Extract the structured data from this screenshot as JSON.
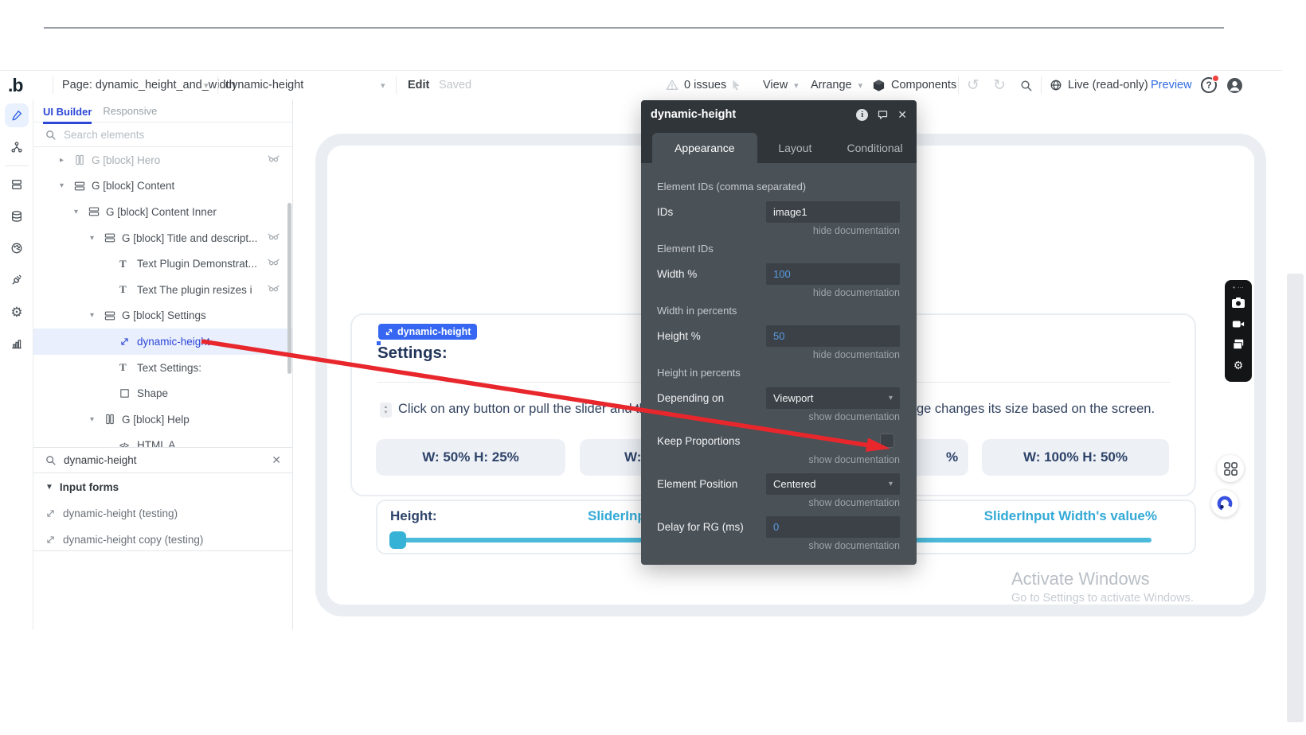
{
  "colors": {
    "accent_blue": "#3767f2",
    "tree_selected_blue": "#2c46d6",
    "teal": "#33a9d6",
    "arrow_red": "#e8272d",
    "inspector_bg": "#4a5157",
    "inspector_dark": "#30353a",
    "canvas_navy": "#2e4369",
    "value_blue": "#5a9ce2"
  },
  "toolbar": {
    "logo": ".b",
    "page_selector": {
      "label": "Page: dynamic_height_and_width"
    },
    "element_selector": {
      "label": "dynamic-height"
    },
    "edit_label": "Edit",
    "saved_label": "Saved",
    "issues_label": "0 issues",
    "view_label": "View",
    "arrange_label": "Arrange",
    "components_label": "Components",
    "live_label": "Live (read-only)",
    "preview_label": "Preview"
  },
  "left_rail": {
    "items": [
      {
        "icon": "pencil-icon",
        "active": true
      },
      {
        "icon": "workflow-icon",
        "active": false
      },
      {
        "icon": "pages-icon",
        "active": false
      },
      {
        "icon": "database-icon",
        "active": false
      },
      {
        "icon": "styles-icon",
        "active": false
      },
      {
        "icon": "plugins-icon",
        "active": false
      },
      {
        "icon": "settings-icon",
        "active": false
      },
      {
        "icon": "logs-icon",
        "active": false
      }
    ]
  },
  "elements_panel": {
    "tabs": [
      {
        "label": "UI Builder",
        "active": true
      },
      {
        "label": "Responsive",
        "active": false
      }
    ],
    "search_placeholder": "Search elements",
    "tree": [
      {
        "label": "G [block] Hero",
        "icon": "group-columns",
        "expander": "collapsed",
        "muted": true,
        "hidden_badge": true,
        "indent": 1
      },
      {
        "label": "G [block] Content",
        "icon": "group-rows",
        "expander": "expanded",
        "indent": 1
      },
      {
        "label": "G [block] Content Inner",
        "icon": "group-rows",
        "expander": "expanded",
        "indent": 2
      },
      {
        "label": "G [block] Title and descript...",
        "icon": "group-rows",
        "expander": "expanded",
        "hidden_badge": true,
        "indent": 3
      },
      {
        "label": "Text Plugin Demonstrat...",
        "icon": "text",
        "hidden_badge": true,
        "indent": 4
      },
      {
        "label": "Text The plugin resizes i",
        "icon": "text",
        "hidden_badge": true,
        "indent": 4
      },
      {
        "label": "G [block] Settings",
        "icon": "group-rows",
        "expander": "expanded",
        "indent": 3
      },
      {
        "label": "dynamic-height",
        "icon": "plugin-arrow",
        "selected": true,
        "indent": 4
      },
      {
        "label": "Text Settings:",
        "icon": "text",
        "indent": 4
      },
      {
        "label": "Shape",
        "icon": "shape",
        "indent": 4
      },
      {
        "label": "G [block] Help",
        "icon": "group-columns",
        "expander": "expanded",
        "indent": 3
      },
      {
        "label": "HTML A",
        "icon": "html",
        "indent": 4
      }
    ],
    "search_value": "dynamic-height",
    "results_group": {
      "label": "Input forms",
      "items": [
        {
          "label": "dynamic-height (testing)"
        },
        {
          "label": "dynamic-height copy (testing)"
        }
      ]
    }
  },
  "canvas": {
    "selection_badge": "dynamic-height",
    "heading": "Settings:",
    "description_start": "Click on any button or pull the slider and the ima",
    "description_end": "ge changes its size based on the screen.",
    "buttons": [
      {
        "label": "W: 50% H: 25%"
      },
      {
        "label": "W:"
      },
      {
        "label": "%"
      },
      {
        "label": "W: 100% H: 50%"
      }
    ],
    "slider": {
      "label": "Height:",
      "left_value_fragment": "SliderInp",
      "right_value": "SliderInput Width's value%"
    },
    "watermark": {
      "line1": "Activate Windows",
      "line2": "Go to Settings to activate Windows."
    }
  },
  "inspector": {
    "title": "dynamic-height",
    "tabs": [
      {
        "label": "Appearance",
        "active": true
      },
      {
        "label": "Layout",
        "active": false
      },
      {
        "label": "Conditional",
        "active": false
      }
    ],
    "rows": [
      {
        "type": "section",
        "label": "Element IDs (comma separated)"
      },
      {
        "type": "input",
        "label": "IDs",
        "value": "image1",
        "dynamic": false,
        "doc": "hide documentation"
      },
      {
        "type": "section",
        "label": "Element IDs"
      },
      {
        "type": "input",
        "label": "Width %",
        "value": "100",
        "dynamic": true,
        "doc": "hide documentation"
      },
      {
        "type": "section",
        "label": "Width in percents"
      },
      {
        "type": "input",
        "label": "Height %",
        "value": "50",
        "dynamic": true,
        "doc": "hide documentation"
      },
      {
        "type": "section",
        "label": "Height in percents"
      },
      {
        "type": "select",
        "label": "Depending on",
        "value": "Viewport",
        "doc": "show documentation"
      },
      {
        "type": "checkbox",
        "label": "Keep Proportions",
        "checked": false,
        "doc": "show documentation"
      },
      {
        "type": "select",
        "label": "Element Position",
        "value": "Centered",
        "doc": "show documentation"
      },
      {
        "type": "input",
        "label": "Delay for RG (ms)",
        "value": "0",
        "dynamic": true,
        "doc": "show documentation"
      }
    ]
  }
}
